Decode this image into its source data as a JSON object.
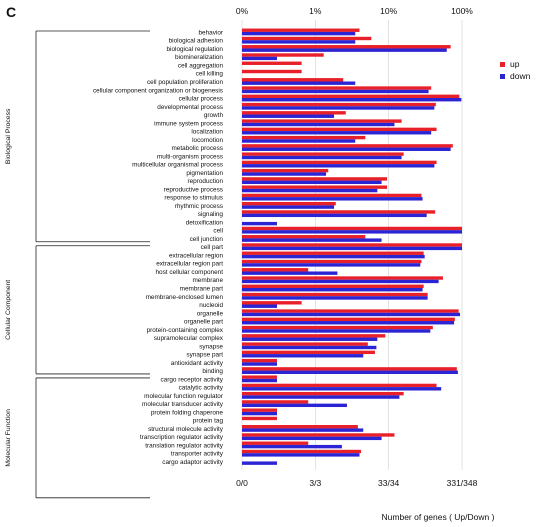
{
  "panel_label": "C",
  "chart_data": {
    "type": "bar",
    "orientation": "horizontal",
    "xscale": "log",
    "top_tick_labels": [
      "0%",
      "1%",
      "10%",
      "100%"
    ],
    "bottom_tick_labels": [
      "0/0",
      "3/3",
      "33/34",
      "331/348"
    ],
    "xlabel": "Number of genes ( Up/Down )",
    "legend": {
      "placement": "right",
      "entries": [
        "up",
        "down"
      ]
    },
    "colors": {
      "up": "#e8202a",
      "down": "#2a24d4"
    },
    "groups": [
      {
        "name": "Biological Process",
        "start": 0,
        "end": 25
      },
      {
        "name": "Cellular Component",
        "start": 26,
        "end": 41
      },
      {
        "name": "Molecular Function",
        "start": 42,
        "end": 56
      }
    ],
    "categories": [
      "behavior",
      "biological adhesion",
      "biological regulation",
      "biomineralization",
      "cell aggregation",
      "cell killing",
      "cell population proliferation",
      "cellular component organization or biogenesis",
      "cellular process",
      "developmental process",
      "growth",
      "immune system process",
      "localization",
      "locomotion",
      "metabolic process",
      "multi-organism process",
      "multicellular organismal process",
      "pigmentation",
      "reproduction",
      "reproductive process",
      "response to stimulus",
      "rhythmic process",
      "signaling",
      "detoxification",
      "cell",
      "cell junction",
      "cell part",
      "extracellular region",
      "extracellular region part",
      "host cellular component",
      "membrane",
      "membrane part",
      "membrane-enclosed lumen",
      "nucleoid",
      "organelle",
      "organelle part",
      "protein-containing complex",
      "supramolecular complex",
      "synapse",
      "synapse part",
      "antioxidant activity",
      "binding",
      "cargo receptor activity",
      "catalytic activity",
      "molecular function regulator",
      "molecular transducer activity",
      "protein folding chaperone",
      "protein tag",
      "structural molecule activity",
      "transcription regulator activity",
      "translation regulator activity",
      "transporter activity",
      "cargo adaptor activity"
    ],
    "series": [
      {
        "name": "up",
        "values": [
          4.0,
          5.8,
          70,
          1.3,
          0.65,
          0.65,
          2.4,
          38,
          92,
          44,
          2.6,
          15,
          45,
          4.8,
          75,
          16,
          45,
          1.5,
          9.5,
          9.5,
          28,
          1.9,
          43,
          0.0,
          100,
          4.8,
          100,
          30,
          28,
          0.8,
          55,
          30,
          34,
          0.65,
          90,
          80,
          40,
          9.0,
          5.2,
          6.5,
          0.3,
          85,
          0.3,
          45,
          16,
          0.8,
          0.3,
          0.3,
          3.8,
          12,
          0.8,
          4.2,
          0.0
        ]
      },
      {
        "name": "down",
        "values": [
          3.5,
          3.5,
          62,
          0.3,
          0.0,
          0.0,
          3.5,
          35,
          98,
          42,
          1.8,
          12,
          38,
          3.5,
          70,
          15,
          42,
          1.4,
          8.0,
          7.0,
          29,
          1.8,
          33,
          0.3,
          100,
          8.0,
          100,
          31,
          27,
          2.0,
          48,
          29,
          34,
          0.3,
          94,
          78,
          37,
          7.0,
          6.8,
          4.5,
          0.3,
          88,
          0.3,
          52,
          14,
          2.7,
          0.3,
          0.0,
          4.5,
          8.0,
          2.3,
          4.0,
          0.3
        ]
      }
    ]
  }
}
